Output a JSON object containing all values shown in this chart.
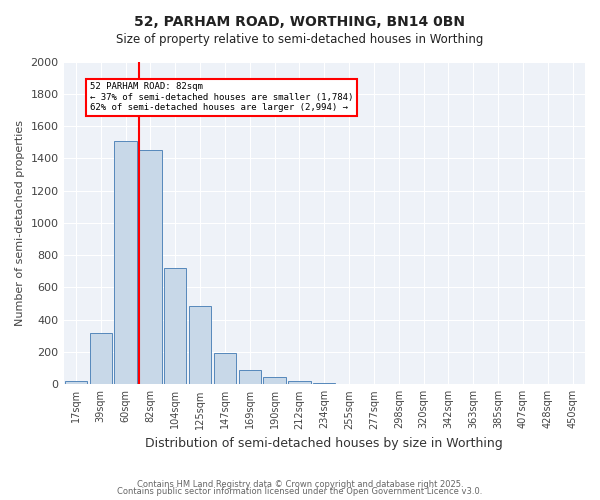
{
  "title1": "52, PARHAM ROAD, WORTHING, BN14 0BN",
  "title2": "Size of property relative to semi-detached houses in Worthing",
  "xlabel": "Distribution of semi-detached houses by size in Worthing",
  "ylabel": "Number of semi-detached properties",
  "bin_labels": [
    "17sqm",
    "39sqm",
    "60sqm",
    "82sqm",
    "104sqm",
    "125sqm",
    "147sqm",
    "169sqm",
    "190sqm",
    "212sqm",
    "234sqm",
    "255sqm",
    "277sqm",
    "298sqm",
    "320sqm",
    "342sqm",
    "363sqm",
    "385sqm",
    "407sqm",
    "428sqm",
    "450sqm"
  ],
  "bar_values": [
    20,
    315,
    1505,
    1450,
    720,
    485,
    195,
    90,
    45,
    20,
    10,
    0,
    0,
    0,
    0,
    0,
    0,
    0,
    0,
    0,
    0
  ],
  "bar_color": "#c8d8e8",
  "bar_edge_color": "#5588bb",
  "red_line_index": 3,
  "annotation_title": "52 PARHAM ROAD: 82sqm",
  "annotation_line1": "← 37% of semi-detached houses are smaller (1,784)",
  "annotation_line2": "62% of semi-detached houses are larger (2,994) →",
  "ylim": [
    0,
    2000
  ],
  "yticks": [
    0,
    200,
    400,
    600,
    800,
    1000,
    1200,
    1400,
    1600,
    1800,
    2000
  ],
  "bg_color": "#eef2f8",
  "footer1": "Contains HM Land Registry data © Crown copyright and database right 2025.",
  "footer2": "Contains public sector information licensed under the Open Government Licence v3.0."
}
